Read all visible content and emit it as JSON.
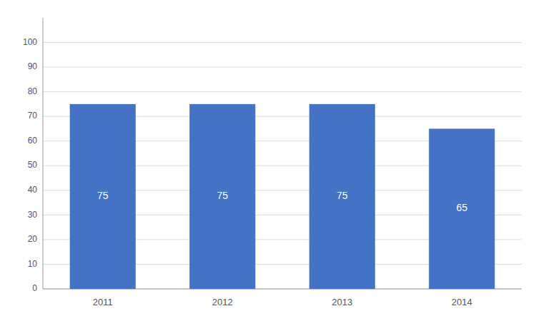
{
  "chart_data": {
    "type": "bar",
    "categories": [
      "2011",
      "2012",
      "2013",
      "2014"
    ],
    "values": [
      75,
      75,
      75,
      65
    ],
    "color": "#4472C4",
    "ylim": [
      0,
      110
    ],
    "yticks": [
      0,
      10,
      20,
      30,
      40,
      50,
      60,
      70,
      80,
      90,
      100
    ],
    "grid": true,
    "data_labels": true
  }
}
